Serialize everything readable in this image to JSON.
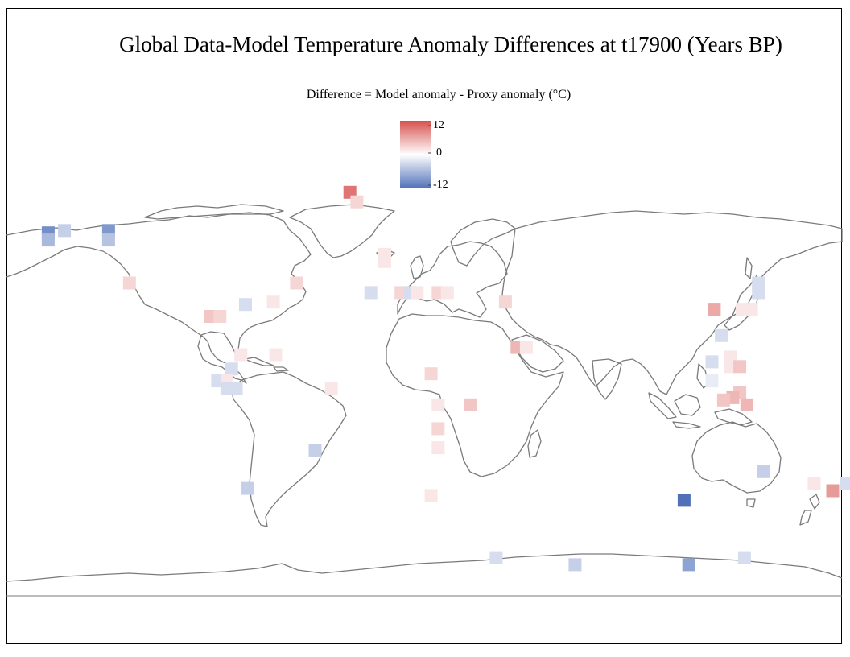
{
  "title": "Global Data-Model Temperature Anomaly Differences at t17900 (Years BP)",
  "subtitle": "Difference = Model anomaly - Proxy anomaly (°C)",
  "colorbar": {
    "max_label": "12",
    "mid_label": "0",
    "min_label": "-12",
    "range": [
      -12,
      12
    ],
    "colors": {
      "max": "#d6514e",
      "mid": "#ffffff",
      "min": "#5071b8"
    }
  },
  "map_style": {
    "coastline_color": "#7a7a7a",
    "background": "#ffffff",
    "projection": "equirectangular"
  },
  "sites": [
    {
      "lon": -162,
      "lat": 62,
      "diff": -9
    },
    {
      "lon": -162,
      "lat": 59,
      "diff": -5
    },
    {
      "lon": -155,
      "lat": 63,
      "diff": -3
    },
    {
      "lon": -136,
      "lat": 63,
      "diff": -8
    },
    {
      "lon": -136,
      "lat": 59,
      "diff": -4
    },
    {
      "lon": -127,
      "lat": 41,
      "diff": 2
    },
    {
      "lon": -92,
      "lat": 27,
      "diff": 3
    },
    {
      "lon": -88,
      "lat": 27,
      "diff": 2
    },
    {
      "lon": -77,
      "lat": 32,
      "diff": -2
    },
    {
      "lon": -65,
      "lat": 33,
      "diff": 1
    },
    {
      "lon": -55,
      "lat": 41,
      "diff": 2
    },
    {
      "lon": -79,
      "lat": 11,
      "diff": 1
    },
    {
      "lon": -64,
      "lat": 11,
      "diff": 1
    },
    {
      "lon": -83,
      "lat": 5,
      "diff": -2
    },
    {
      "lon": -89,
      "lat": 0,
      "diff": -2
    },
    {
      "lon": -85,
      "lat": 0,
      "diff": 1
    },
    {
      "lon": -85,
      "lat": -3,
      "diff": -2
    },
    {
      "lon": -81,
      "lat": -3,
      "diff": -2
    },
    {
      "lon": -40,
      "lat": -3,
      "diff": 1
    },
    {
      "lon": -47,
      "lat": -29,
      "diff": -3
    },
    {
      "lon": -76,
      "lat": -45,
      "diff": -3
    },
    {
      "lon": -32,
      "lat": 79,
      "diff": 9
    },
    {
      "lon": -29,
      "lat": 75,
      "diff": 2
    },
    {
      "lon": -17,
      "lat": 53,
      "diff": 1
    },
    {
      "lon": -17,
      "lat": 50,
      "diff": 1
    },
    {
      "lon": -23,
      "lat": 37,
      "diff": -2
    },
    {
      "lon": -10,
      "lat": 37,
      "diff": 2
    },
    {
      "lon": -6,
      "lat": 37,
      "diff": -2
    },
    {
      "lon": -3,
      "lat": 37,
      "diff": 1
    },
    {
      "lon": 6,
      "lat": 37,
      "diff": 2
    },
    {
      "lon": 10,
      "lat": 37,
      "diff": 1
    },
    {
      "lon": 35,
      "lat": 33,
      "diff": 2
    },
    {
      "lon": 40,
      "lat": 14,
      "diff": 4
    },
    {
      "lon": 44,
      "lat": 14,
      "diff": 1
    },
    {
      "lon": 3,
      "lat": 3,
      "diff": 2
    },
    {
      "lon": 6,
      "lat": -10,
      "diff": 1
    },
    {
      "lon": 6,
      "lat": -20,
      "diff": 2
    },
    {
      "lon": 6,
      "lat": -28,
      "diff": 1
    },
    {
      "lon": 20,
      "lat": -10,
      "diff": 3
    },
    {
      "lon": 3,
      "lat": -48,
      "diff": 1
    },
    {
      "lon": 125,
      "lat": 30,
      "diff": 5
    },
    {
      "lon": 137,
      "lat": 30,
      "diff": 1
    },
    {
      "lon": 141,
      "lat": 30,
      "diff": 1
    },
    {
      "lon": 144,
      "lat": 37,
      "diff": -2
    },
    {
      "lon": 144,
      "lat": 41,
      "diff": -2
    },
    {
      "lon": 128,
      "lat": 19,
      "diff": -2
    },
    {
      "lon": 132,
      "lat": 10,
      "diff": 1
    },
    {
      "lon": 124,
      "lat": 8,
      "diff": -2
    },
    {
      "lon": 132,
      "lat": 6,
      "diff": 1
    },
    {
      "lon": 136,
      "lat": 6,
      "diff": 3
    },
    {
      "lon": 124,
      "lat": 0,
      "diff": -1
    },
    {
      "lon": 136,
      "lat": -5,
      "diff": 3
    },
    {
      "lon": 133,
      "lat": -7,
      "diff": 4
    },
    {
      "lon": 129,
      "lat": -8,
      "diff": 3
    },
    {
      "lon": 139,
      "lat": -10,
      "diff": 4
    },
    {
      "lon": 146,
      "lat": -38,
      "diff": -3
    },
    {
      "lon": 168,
      "lat": -43,
      "diff": 1
    },
    {
      "lon": 176,
      "lat": -46,
      "diff": 6
    },
    {
      "lon": 182,
      "lat": -43,
      "diff": -2
    },
    {
      "lon": 112,
      "lat": -50,
      "diff": -12
    },
    {
      "lon": 31,
      "lat": -74,
      "diff": -2
    },
    {
      "lon": 65,
      "lat": -77,
      "diff": -3
    },
    {
      "lon": 114,
      "lat": -77,
      "diff": -7
    },
    {
      "lon": 138,
      "lat": -74,
      "diff": -2
    }
  ]
}
